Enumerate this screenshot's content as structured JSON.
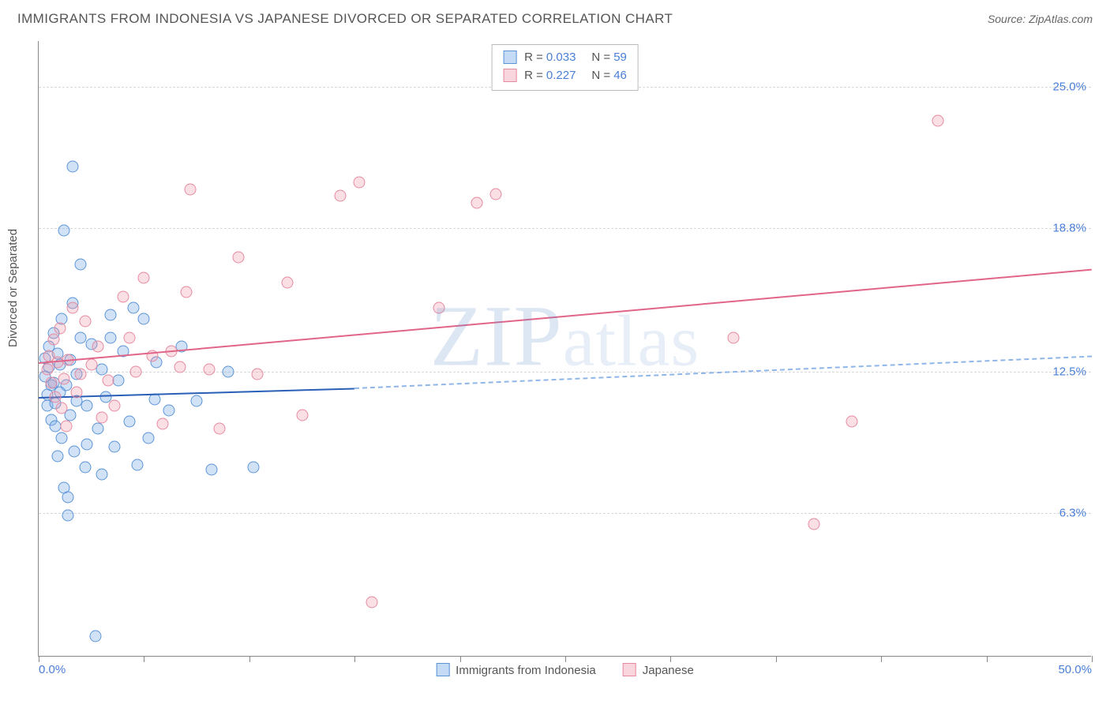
{
  "header": {
    "title": "IMMIGRANTS FROM INDONESIA VS JAPANESE DIVORCED OR SEPARATED CORRELATION CHART",
    "source": "Source: ZipAtlas.com"
  },
  "watermark": {
    "left": "ZIP",
    "right": "atlas"
  },
  "chart": {
    "type": "scatter",
    "ylabel": "Divorced or Separated",
    "xlim": [
      0,
      50
    ],
    "ylim": [
      0,
      27
    ],
    "xticks": {
      "positions": [
        0,
        5,
        10,
        15,
        20,
        25,
        30,
        35,
        40,
        45,
        50
      ],
      "labels": {
        "0": "0.0%",
        "50": "50.0%"
      }
    },
    "yticks": [
      {
        "v": 6.3,
        "label": "6.3%"
      },
      {
        "v": 12.5,
        "label": "12.5%"
      },
      {
        "v": 18.8,
        "label": "18.8%"
      },
      {
        "v": 25.0,
        "label": "25.0%"
      }
    ],
    "grid_color": "#d8d8d8",
    "background_color": "#ffffff",
    "series": [
      {
        "name": "Immigrants from Indonesia",
        "key": "blue",
        "fill": "rgba(124,172,232,0.35)",
        "stroke": "#5c94d6",
        "R": "0.033",
        "N": "59",
        "trend_solid": {
          "x1": 0,
          "y1": 11.4,
          "x2": 15,
          "y2": 11.8,
          "color": "#2a5fb8"
        },
        "trend_dash": {
          "x1": 15,
          "y1": 11.8,
          "x2": 50,
          "y2": 13.2,
          "color": "#8fb6e8"
        },
        "points": [
          [
            0.3,
            13.1
          ],
          [
            0.3,
            12.3
          ],
          [
            0.4,
            11.5
          ],
          [
            0.4,
            11.0
          ],
          [
            0.5,
            12.7
          ],
          [
            0.5,
            13.6
          ],
          [
            0.6,
            10.4
          ],
          [
            0.6,
            11.9
          ],
          [
            0.7,
            14.2
          ],
          [
            0.7,
            12.0
          ],
          [
            0.8,
            11.1
          ],
          [
            0.8,
            10.1
          ],
          [
            0.9,
            13.3
          ],
          [
            0.9,
            8.8
          ],
          [
            1.0,
            11.6
          ],
          [
            1.0,
            12.8
          ],
          [
            1.1,
            14.8
          ],
          [
            1.1,
            9.6
          ],
          [
            1.2,
            18.7
          ],
          [
            1.2,
            7.4
          ],
          [
            1.3,
            11.9
          ],
          [
            1.4,
            7.0
          ],
          [
            1.4,
            6.2
          ],
          [
            1.5,
            10.6
          ],
          [
            1.5,
            13.0
          ],
          [
            1.6,
            21.5
          ],
          [
            1.6,
            15.5
          ],
          [
            1.7,
            9.0
          ],
          [
            1.8,
            11.2
          ],
          [
            1.8,
            12.4
          ],
          [
            2.0,
            17.2
          ],
          [
            2.0,
            14.0
          ],
          [
            2.2,
            8.3
          ],
          [
            2.3,
            11.0
          ],
          [
            2.3,
            9.3
          ],
          [
            2.5,
            13.7
          ],
          [
            2.7,
            0.9
          ],
          [
            2.8,
            10.0
          ],
          [
            3.0,
            8.0
          ],
          [
            3.0,
            12.6
          ],
          [
            3.2,
            11.4
          ],
          [
            3.4,
            15.0
          ],
          [
            3.4,
            14.0
          ],
          [
            3.6,
            9.2
          ],
          [
            3.8,
            12.1
          ],
          [
            4.0,
            13.4
          ],
          [
            4.3,
            10.3
          ],
          [
            4.5,
            15.3
          ],
          [
            4.7,
            8.4
          ],
          [
            5.0,
            14.8
          ],
          [
            5.2,
            9.6
          ],
          [
            5.5,
            11.3
          ],
          [
            5.6,
            12.9
          ],
          [
            6.2,
            10.8
          ],
          [
            6.8,
            13.6
          ],
          [
            7.5,
            11.2
          ],
          [
            8.2,
            8.2
          ],
          [
            9.0,
            12.5
          ],
          [
            10.2,
            8.3
          ]
        ]
      },
      {
        "name": "Japanese",
        "key": "pink",
        "fill": "rgba(240,150,170,0.30)",
        "stroke": "#e68aa0",
        "R": "0.227",
        "N": "46",
        "trend_solid": {
          "x1": 0,
          "y1": 12.9,
          "x2": 50,
          "y2": 17.0,
          "color": "#e06588"
        },
        "points": [
          [
            0.4,
            12.6
          ],
          [
            0.5,
            13.2
          ],
          [
            0.6,
            12.0
          ],
          [
            0.7,
            13.9
          ],
          [
            0.8,
            11.4
          ],
          [
            0.9,
            12.9
          ],
          [
            1.0,
            14.4
          ],
          [
            1.1,
            10.9
          ],
          [
            1.2,
            12.2
          ],
          [
            1.3,
            10.1
          ],
          [
            1.4,
            13.0
          ],
          [
            1.6,
            15.3
          ],
          [
            1.8,
            11.6
          ],
          [
            2.0,
            12.4
          ],
          [
            2.2,
            14.7
          ],
          [
            2.5,
            12.8
          ],
          [
            2.8,
            13.6
          ],
          [
            3.0,
            10.5
          ],
          [
            3.3,
            12.1
          ],
          [
            3.6,
            11.0
          ],
          [
            4.0,
            15.8
          ],
          [
            4.3,
            14.0
          ],
          [
            4.6,
            12.5
          ],
          [
            5.0,
            16.6
          ],
          [
            5.4,
            13.2
          ],
          [
            5.9,
            10.2
          ],
          [
            6.3,
            13.4
          ],
          [
            6.7,
            12.7
          ],
          [
            7.0,
            16.0
          ],
          [
            7.2,
            20.5
          ],
          [
            8.1,
            12.6
          ],
          [
            8.6,
            10.0
          ],
          [
            9.5,
            17.5
          ],
          [
            10.4,
            12.4
          ],
          [
            11.8,
            16.4
          ],
          [
            12.5,
            10.6
          ],
          [
            14.3,
            20.2
          ],
          [
            15.2,
            20.8
          ],
          [
            15.8,
            2.4
          ],
          [
            19.0,
            15.3
          ],
          [
            20.8,
            19.9
          ],
          [
            21.7,
            20.3
          ],
          [
            33.0,
            14.0
          ],
          [
            36.8,
            5.8
          ],
          [
            38.6,
            10.3
          ],
          [
            42.7,
            23.5
          ]
        ]
      }
    ]
  },
  "legend_bottom": [
    {
      "key": "blue",
      "label": "Immigrants from Indonesia"
    },
    {
      "key": "pink",
      "label": "Japanese"
    }
  ]
}
